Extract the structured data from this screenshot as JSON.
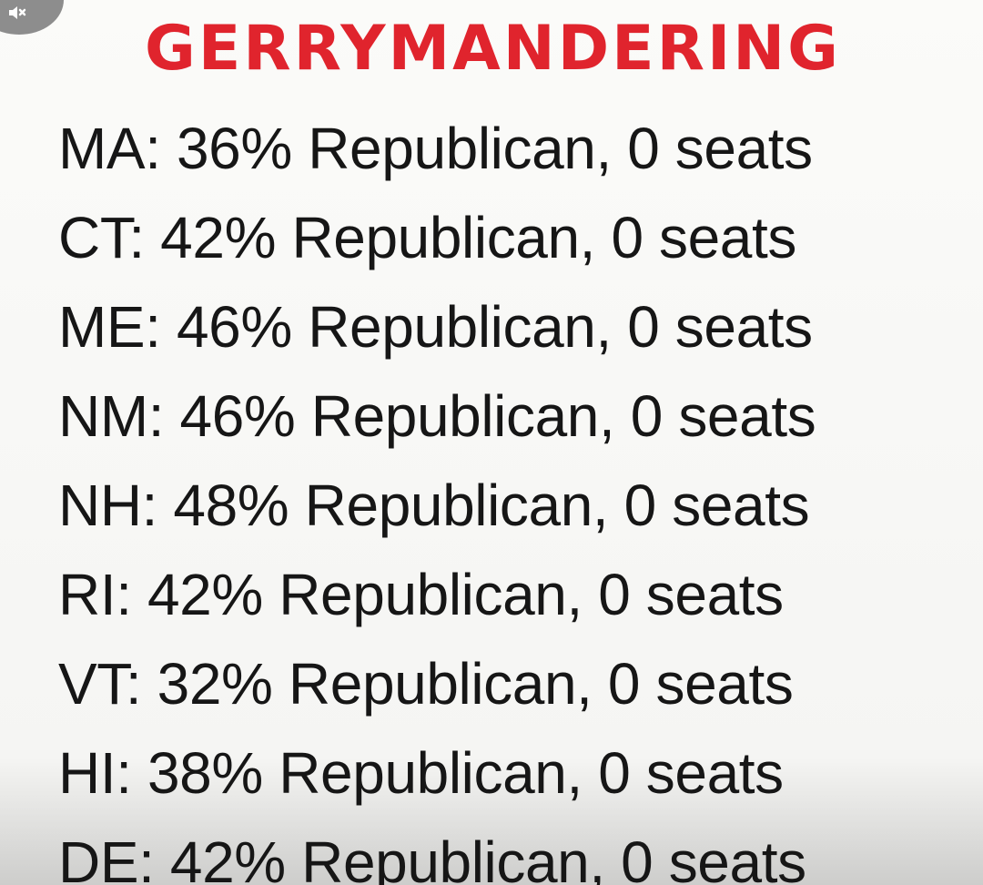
{
  "title": "GERRYMANDERING",
  "sound_icon": "muted-speaker-icon",
  "lines": [
    "MA: 36% Republican, 0 seats",
    "CT: 42% Republican, 0 seats",
    "ME: 46% Republican, 0 seats",
    "NM: 46% Republican, 0 seats",
    "NH: 48% Republican, 0 seats",
    "RI: 42% Republican, 0 seats",
    "VT: 32% Republican, 0 seats",
    "HI: 38% Republican, 0 seats",
    "DE: 42% Republican, 0 seats"
  ],
  "colors": {
    "title": "#e0242d",
    "text": "#161616",
    "background": "#f6f6f4"
  }
}
